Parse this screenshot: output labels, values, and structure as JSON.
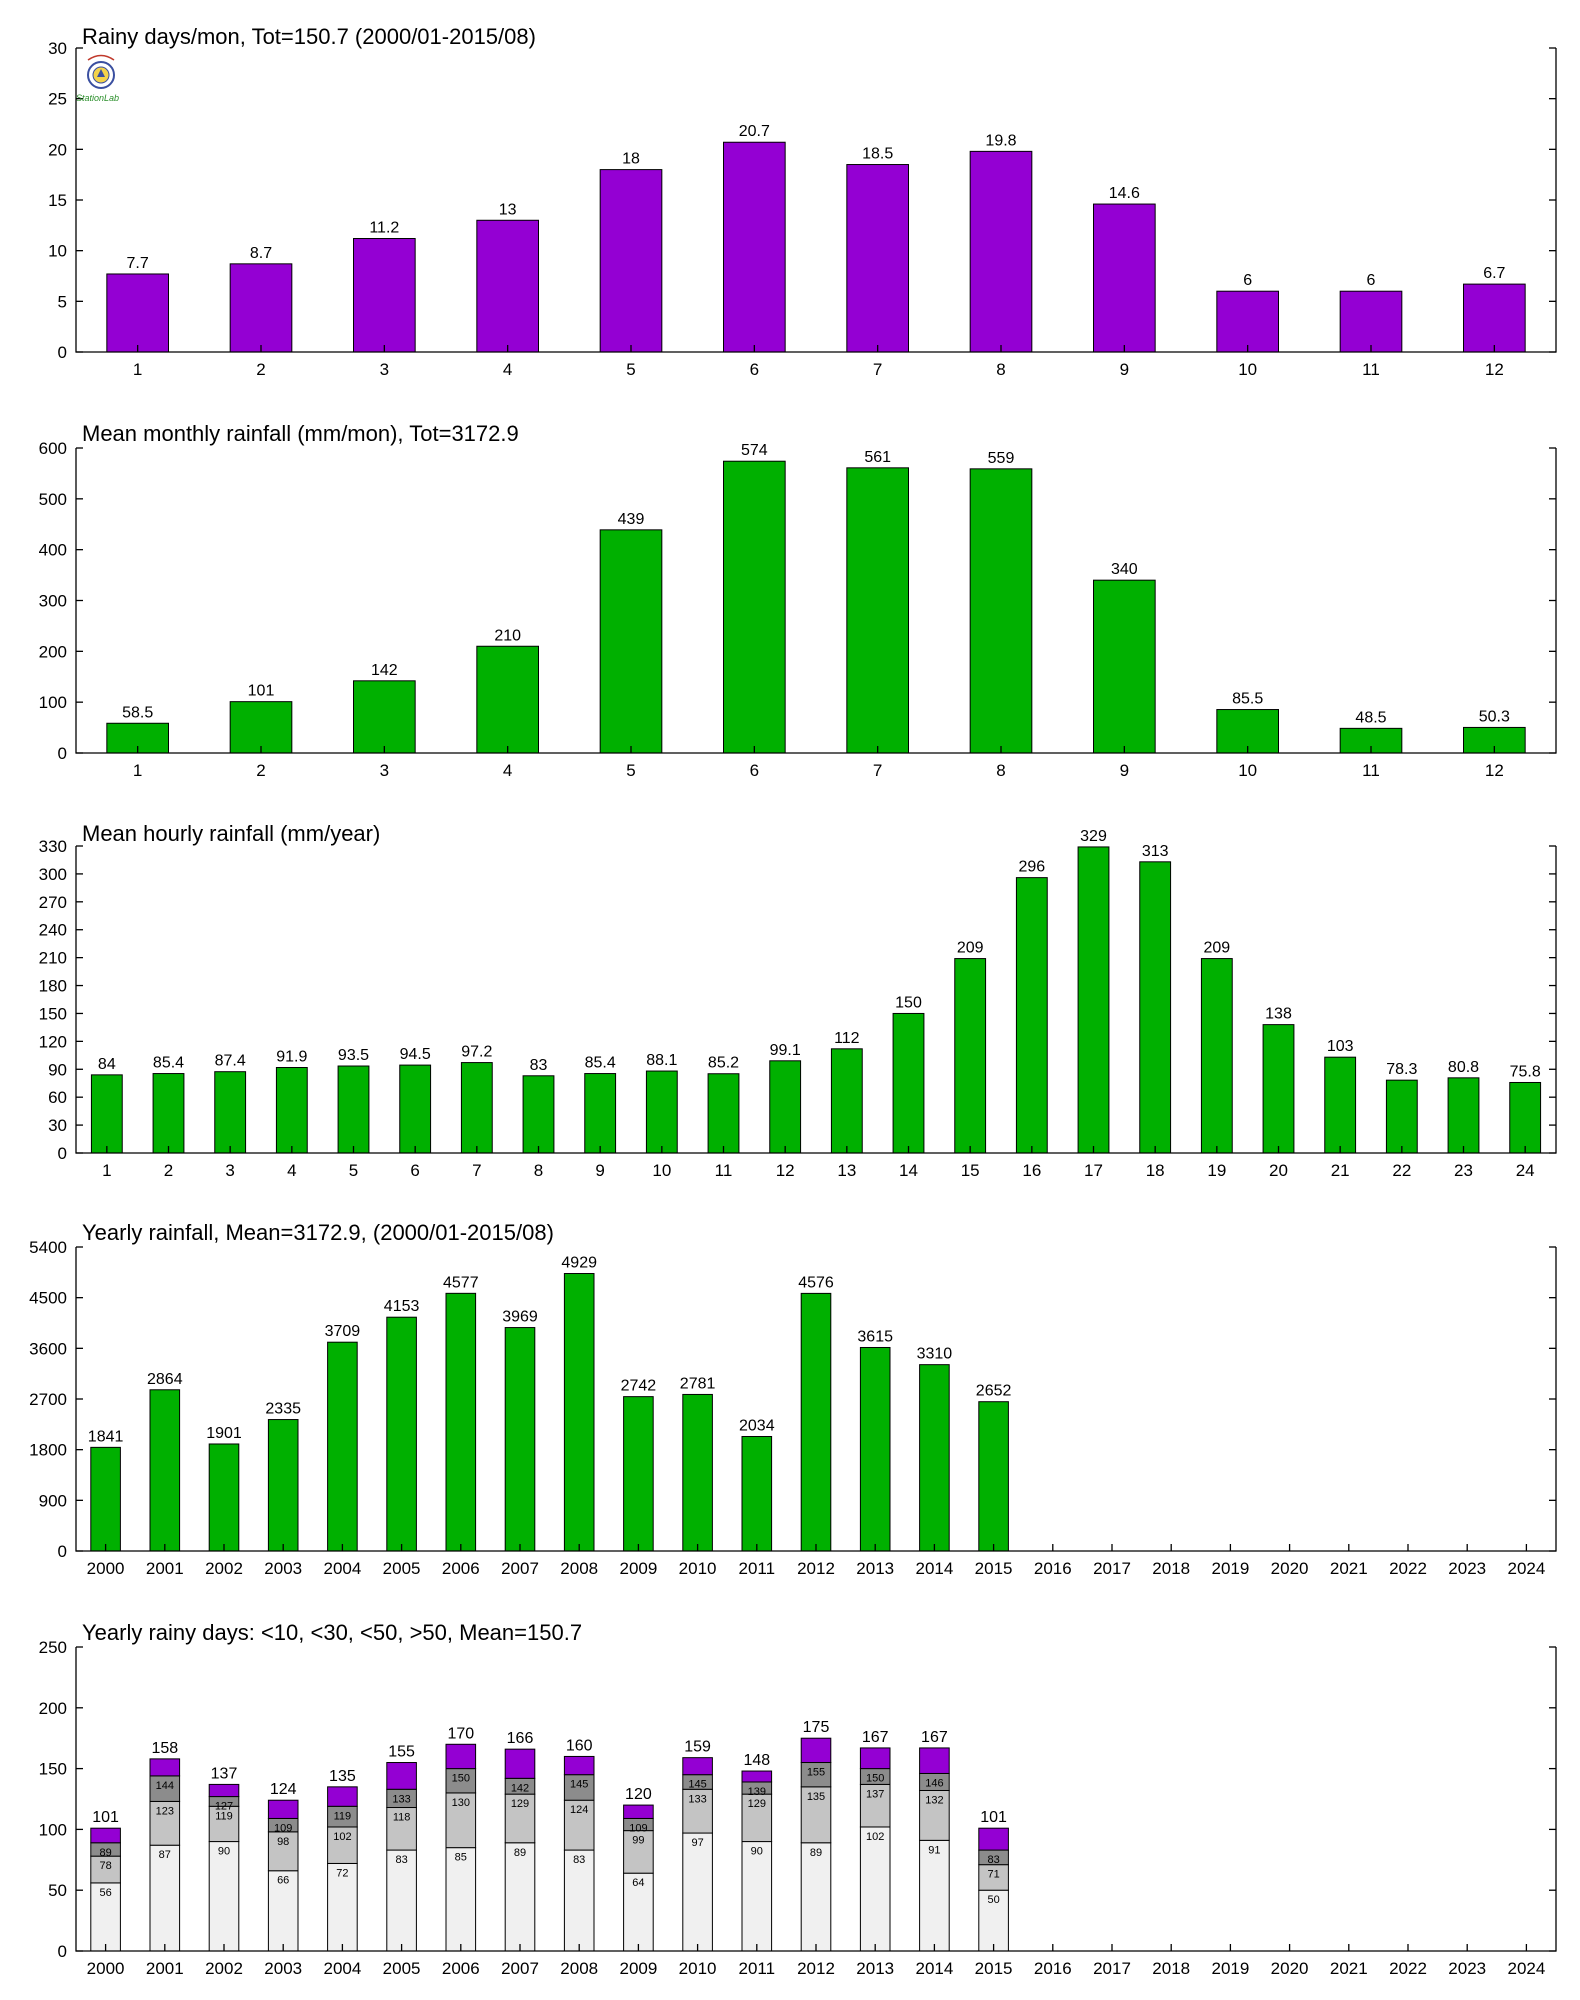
{
  "colors": {
    "rainy_days": "#9400d3",
    "rainfall": "#00b000",
    "stack_lt10": "#f0f0f0",
    "stack_lt30": "#c4c4c4",
    "stack_lt50": "#8c8c8c",
    "stack_gt50": "#9400d3"
  },
  "logo": {
    "icon": "station-lab-logo-icon",
    "text": "StationLab"
  },
  "chart_data": [
    {
      "type": "bar",
      "title": "Rainy days/mon, Tot=150.7 (2000/01-2015/08)",
      "categories": [
        "1",
        "2",
        "3",
        "4",
        "5",
        "6",
        "7",
        "8",
        "9",
        "10",
        "11",
        "12"
      ],
      "values": [
        7.7,
        8.7,
        11.2,
        13,
        18,
        20.7,
        18.5,
        19.8,
        14.6,
        6,
        6,
        6.7
      ],
      "labels": [
        "7.7",
        "8.7",
        "11.2",
        "13",
        "18",
        "20.7",
        "18.5",
        "19.8",
        "14.6",
        "6",
        "6",
        "6.7"
      ],
      "ylim": [
        0,
        30
      ],
      "yticks": [
        "0",
        "5",
        "10",
        "15",
        "20",
        "25",
        "30"
      ],
      "grid": false
    },
    {
      "type": "bar",
      "title": "Mean monthly rainfall (mm/mon), Tot=3172.9",
      "categories": [
        "1",
        "2",
        "3",
        "4",
        "5",
        "6",
        "7",
        "8",
        "9",
        "10",
        "11",
        "12"
      ],
      "values": [
        58.5,
        101,
        142,
        210,
        439,
        574,
        561,
        559,
        340,
        85.5,
        48.5,
        50.3
      ],
      "labels": [
        "58.5",
        "101",
        "142",
        "210",
        "439",
        "574",
        "561",
        "559",
        "340",
        "85.5",
        "48.5",
        "50.3"
      ],
      "ylim": [
        0,
        600
      ],
      "yticks": [
        "0",
        "100",
        "200",
        "300",
        "400",
        "500",
        "600"
      ],
      "grid": false
    },
    {
      "type": "bar",
      "title": "Mean hourly rainfall (mm/year)",
      "categories": [
        "1",
        "2",
        "3",
        "4",
        "5",
        "6",
        "7",
        "8",
        "9",
        "10",
        "11",
        "12",
        "13",
        "14",
        "15",
        "16",
        "17",
        "18",
        "19",
        "20",
        "21",
        "22",
        "23",
        "24"
      ],
      "values": [
        84,
        85.4,
        87.4,
        91.9,
        93.5,
        94.5,
        97.2,
        83,
        85.4,
        88.1,
        85.2,
        99.1,
        112,
        150,
        209,
        296,
        329,
        313,
        209,
        138,
        103,
        78.3,
        80.8,
        75.8
      ],
      "labels": [
        "84",
        "85.4",
        "87.4",
        "91.9",
        "93.5",
        "94.5",
        "97.2",
        "83",
        "85.4",
        "88.1",
        "85.2",
        "99.1",
        "112",
        "150",
        "209",
        "296",
        "329",
        "313",
        "209",
        "138",
        "103",
        "78.3",
        "80.8",
        "75.8"
      ],
      "ylim": [
        0,
        330
      ],
      "yticks": [
        "0",
        "30",
        "60",
        "90",
        "120",
        "150",
        "180",
        "210",
        "240",
        "270",
        "300",
        "330"
      ],
      "grid": false
    },
    {
      "type": "bar",
      "title": "Yearly rainfall, Mean=3172.9, (2000/01-2015/08)",
      "categories": [
        "2000",
        "2001",
        "2002",
        "2003",
        "2004",
        "2005",
        "2006",
        "2007",
        "2008",
        "2009",
        "2010",
        "2011",
        "2012",
        "2013",
        "2014",
        "2015",
        "2016",
        "2017",
        "2018",
        "2019",
        "2020",
        "2021",
        "2022",
        "2023",
        "2024"
      ],
      "values": [
        1841,
        2864,
        1901,
        2335,
        3709,
        4153,
        4577,
        3969,
        4929,
        2742,
        2781,
        2034,
        4576,
        3615,
        3310,
        2652,
        null,
        null,
        null,
        null,
        null,
        null,
        null,
        null,
        null
      ],
      "labels": [
        "1841",
        "2864",
        "1901",
        "2335",
        "3709",
        "4153",
        "4577",
        "3969",
        "4929",
        "2742",
        "2781",
        "2034",
        "4576",
        "3615",
        "3310",
        "2652",
        "",
        "",
        "",
        "",
        "",
        "",
        "",
        "",
        ""
      ],
      "ylim": [
        0,
        5400
      ],
      "yticks": [
        "0",
        "900",
        "1800",
        "2700",
        "3600",
        "4500",
        "5400"
      ],
      "grid": false
    },
    {
      "type": "bar",
      "stacked": true,
      "title": "Yearly rainy days: <10, <30, <50, >50, Mean=150.7",
      "categories": [
        "2000",
        "2001",
        "2002",
        "2003",
        "2004",
        "2005",
        "2006",
        "2007",
        "2008",
        "2009",
        "2010",
        "2011",
        "2012",
        "2013",
        "2014",
        "2015",
        "2016",
        "2017",
        "2018",
        "2019",
        "2020",
        "2021",
        "2022",
        "2023",
        "2024"
      ],
      "cumulative": [
        [
          56,
          78,
          89,
          101
        ],
        [
          87,
          123,
          144,
          158
        ],
        [
          90,
          119,
          127,
          137
        ],
        [
          66,
          98,
          109,
          124
        ],
        [
          72,
          102,
          119,
          135
        ],
        [
          83,
          118,
          133,
          155
        ],
        [
          85,
          130,
          150,
          170
        ],
        [
          89,
          129,
          142,
          166
        ],
        [
          83,
          124,
          145,
          160
        ],
        [
          64,
          99,
          109,
          120
        ],
        [
          97,
          133,
          145,
          159
        ],
        [
          90,
          129,
          139,
          148
        ],
        [
          89,
          135,
          155,
          175
        ],
        [
          102,
          137,
          150,
          167
        ],
        [
          91,
          132,
          146,
          167
        ],
        [
          50,
          71,
          83,
          101
        ],
        null,
        null,
        null,
        null,
        null,
        null,
        null,
        null,
        null
      ],
      "ylim": [
        0,
        250
      ],
      "yticks": [
        "0",
        "50",
        "100",
        "150",
        "200",
        "250"
      ],
      "grid": false
    }
  ]
}
